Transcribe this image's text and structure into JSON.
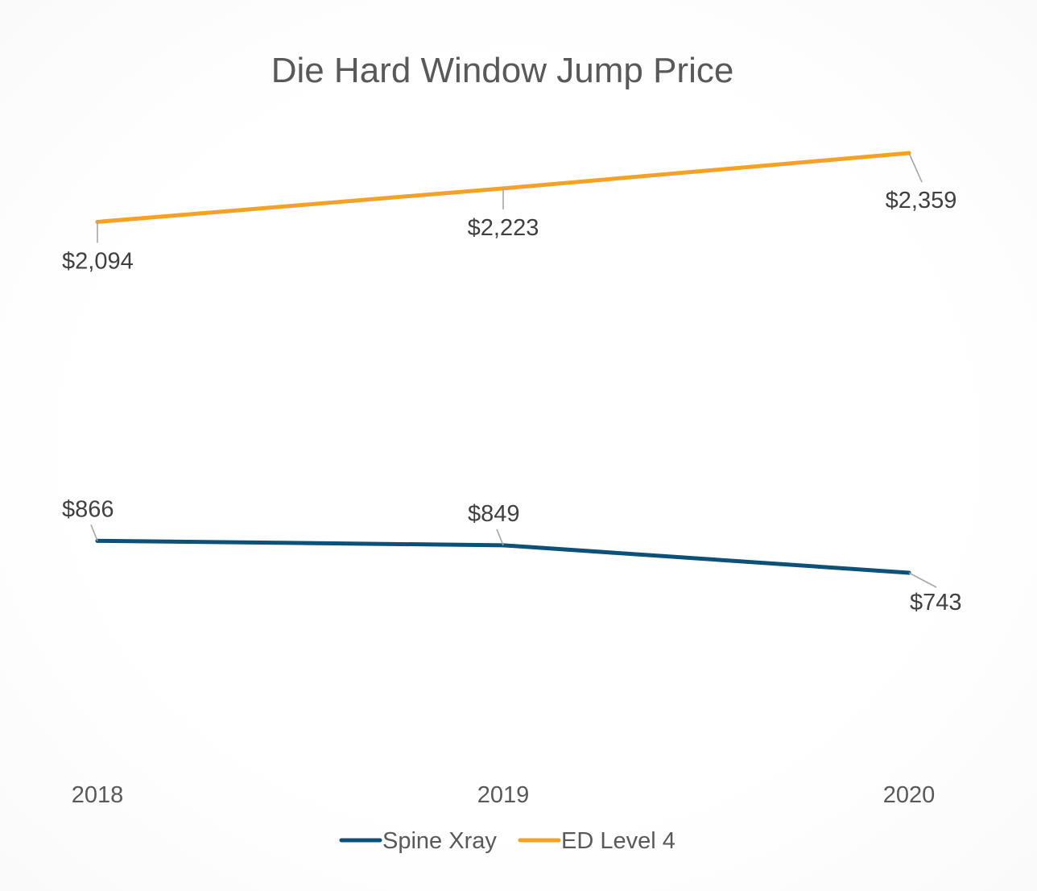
{
  "chart_data": {
    "type": "line",
    "title": "Die Hard Window Jump Price",
    "xlabel": "",
    "ylabel": "",
    "categories": [
      "2018",
      "2019",
      "2020"
    ],
    "series": [
      {
        "name": "Spine Xray",
        "color": "#0d5078",
        "values": [
          866,
          849,
          743
        ],
        "labels": [
          "$866",
          "$849",
          "$743"
        ],
        "label_side": [
          "above",
          "above",
          "below"
        ]
      },
      {
        "name": "ED Level 4",
        "color": "#f5a125",
        "values": [
          2094,
          2223,
          2359
        ],
        "labels": [
          "$2,094",
          "$2,223",
          "$2,359"
        ],
        "label_side": [
          "below",
          "below",
          "below"
        ]
      }
    ],
    "ylim": [
      500,
      2400
    ],
    "grid": false,
    "legend": "bottom"
  }
}
